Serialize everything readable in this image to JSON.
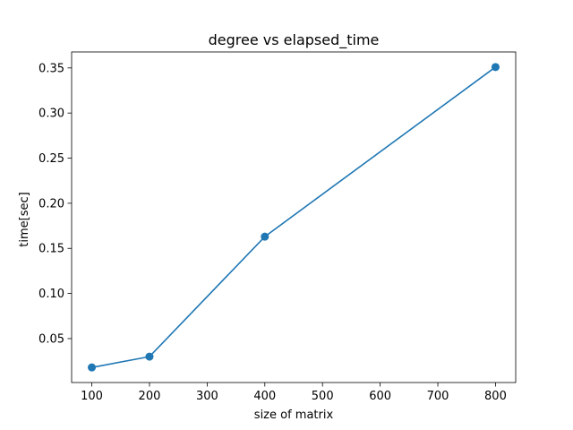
{
  "chart_data": {
    "type": "line",
    "title": "degree vs elapsed_time",
    "xlabel": "size of matrix",
    "ylabel": "time[sec]",
    "x": [
      100,
      200,
      400,
      800
    ],
    "series": [
      {
        "values": [
          0.018,
          0.03,
          0.163,
          0.351
        ],
        "color": "#1f77b4",
        "marker": "circle"
      }
    ],
    "xlim": [
      65,
      835
    ],
    "ylim": [
      0.0013,
      0.3677
    ],
    "xticks": [
      100,
      200,
      300,
      400,
      500,
      600,
      700,
      800
    ],
    "yticks": [
      0.05,
      0.1,
      0.15,
      0.2,
      0.25,
      0.3,
      0.35
    ],
    "xtick_labels": [
      "100",
      "200",
      "300",
      "400",
      "500",
      "600",
      "700",
      "800"
    ],
    "ytick_labels": [
      "0.05",
      "0.10",
      "0.15",
      "0.20",
      "0.25",
      "0.30",
      "0.35"
    ],
    "grid": false,
    "legend": false
  }
}
